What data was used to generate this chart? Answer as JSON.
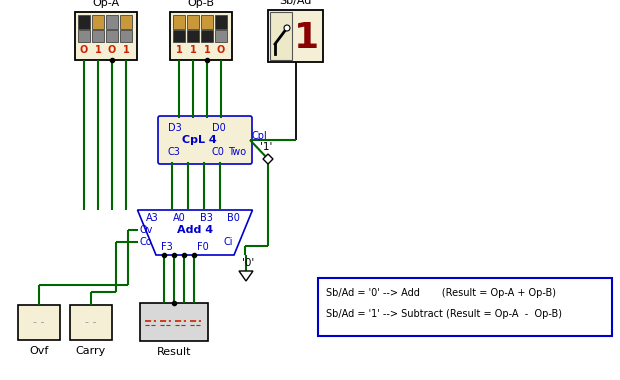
{
  "bg_color": "#ffffff",
  "green": "#006600",
  "blue": "#0000cc",
  "red_dark": "#8b0000",
  "red_label": "#cc2200",
  "black": "#000000",
  "tan": "#f5f0d5",
  "legend_text1": "Sb/Ad = '0' --> Add       (Result = Op-A + Op-B)",
  "legend_text2": "Sb/Ad = '1' --> Subtract (Result = Op-A  -  Op-B)",
  "opa_bits": [
    "O",
    "1",
    "O",
    "1"
  ],
  "opb_bits": [
    "1",
    "1",
    "1",
    "O"
  ],
  "opa_seg_colors": [
    "#222222",
    "#c8983a",
    "#888888",
    "#222222"
  ],
  "opa_seg_colors2": [
    "#888888",
    "#888888",
    "#888888",
    "#888888"
  ],
  "opb_seg_colors": [
    "#c8983a",
    "#c8983a",
    "#c8983a",
    "#888888"
  ],
  "opb_seg_colors2": [
    "#222222",
    "#222222",
    "#222222",
    "#888888"
  ]
}
